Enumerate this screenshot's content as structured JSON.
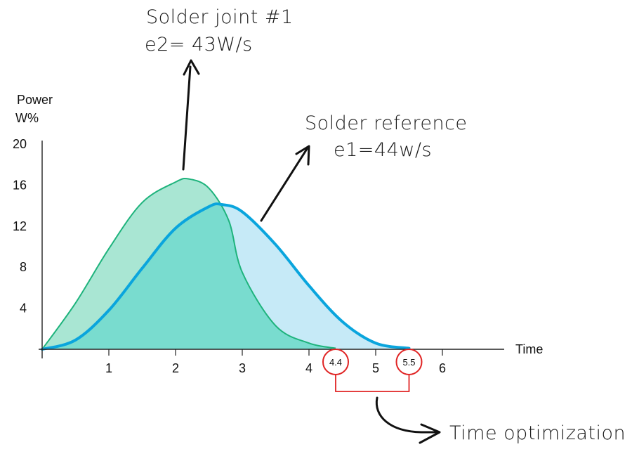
{
  "chart_data": {
    "type": "area",
    "ylabel_line1": "Power",
    "ylabel_line2": "W%",
    "xlabel": "Time",
    "xlim": [
      0,
      7
    ],
    "ylim": [
      0,
      20
    ],
    "x_ticks": [
      "1",
      "2",
      "3",
      "4",
      "5",
      "6"
    ],
    "y_ticks": [
      "4",
      "8",
      "12",
      "16",
      "20"
    ],
    "series": [
      {
        "name": "Solder joint #1",
        "fill": "#a9e6d3",
        "stroke": "#1eb37c",
        "x": [
          0,
          0.5,
          1,
          1.5,
          2,
          2.2,
          2.5,
          2.8,
          3,
          3.5,
          4,
          4.4
        ],
        "y": [
          0,
          4.5,
          9.8,
          14.3,
          16.3,
          16.6,
          15.7,
          12.5,
          7.5,
          2.3,
          0.6,
          0.1
        ]
      },
      {
        "name": "Solder reference",
        "fill": "#c6eaf7",
        "stroke": "#0aa5dd",
        "x": [
          0,
          0.5,
          1,
          1.5,
          2,
          2.5,
          2.7,
          3,
          3.5,
          4,
          4.5,
          5,
          5.5
        ],
        "y": [
          0,
          0.9,
          3.8,
          7.9,
          11.8,
          13.9,
          14.1,
          13.4,
          10.2,
          6.2,
          2.7,
          0.6,
          0.1
        ]
      }
    ],
    "overlap_fill": "#79dccf",
    "markers": [
      {
        "x": 4.4,
        "label": "4.4"
      },
      {
        "x": 5.5,
        "label": "5.5"
      }
    ],
    "annotations": {
      "joint_line1": "Solder joint #1",
      "joint_line2": "e2= 43W/s",
      "reference_line1": "Solder reference",
      "reference_line2": "e1=44w/s",
      "time_optimization": "Time optimization"
    },
    "marker_color": "#e02424"
  }
}
